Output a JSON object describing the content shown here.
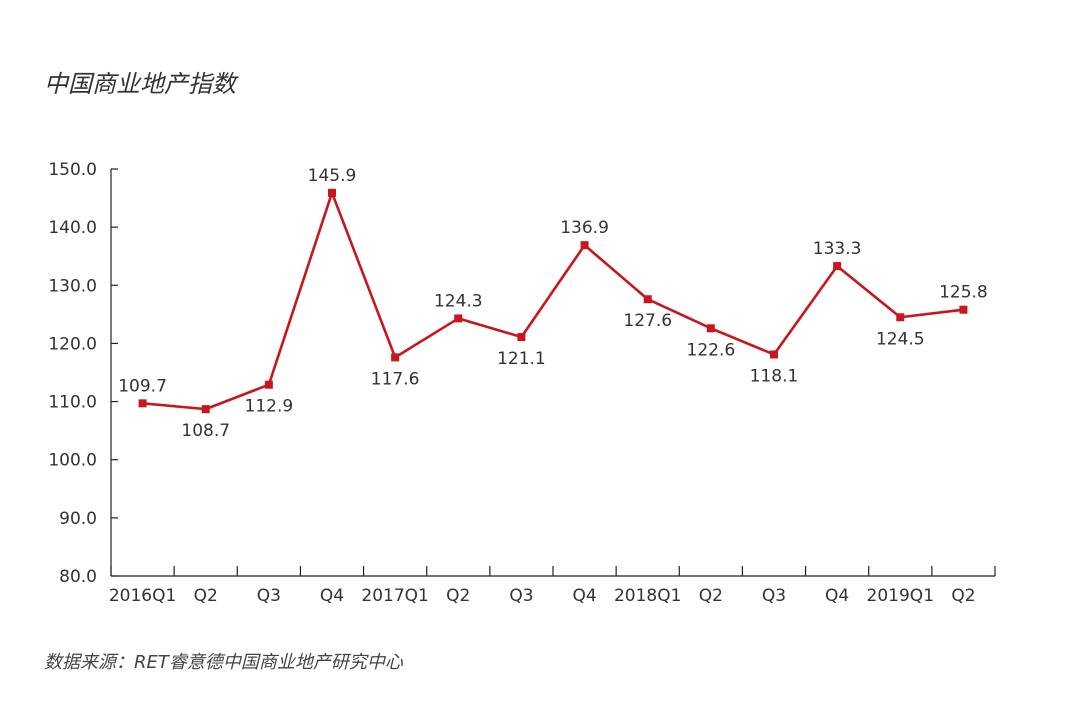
{
  "chart_data": {
    "type": "line",
    "title": "中国商业地产指数",
    "source": "数据来源：RET睿意德中国商业地产研究中心",
    "xlabel": "",
    "ylabel": "",
    "categories": [
      "2016Q1",
      "Q2",
      "Q3",
      "Q4",
      "2017Q1",
      "Q2",
      "Q3",
      "Q4",
      "2018Q1",
      "Q2",
      "Q3",
      "Q4",
      "2019Q1",
      "Q2"
    ],
    "series": [
      {
        "values": [
          109.7,
          108.7,
          112.9,
          145.9,
          117.6,
          124.3,
          121.1,
          136.9,
          127.6,
          122.6,
          118.1,
          133.3,
          124.5,
          125.8
        ],
        "color": "#c8161d"
      }
    ],
    "label_positions": [
      "above",
      "below",
      "below",
      "above",
      "below",
      "above",
      "below",
      "above",
      "below",
      "below",
      "below",
      "above",
      "below",
      "above"
    ],
    "ylim": [
      80,
      150
    ],
    "yticks": [
      "80.0",
      "90.0",
      "100.0",
      "110.0",
      "120.0",
      "130.0",
      "140.0",
      "150.0"
    ],
    "grid": false,
    "legend": "none"
  }
}
